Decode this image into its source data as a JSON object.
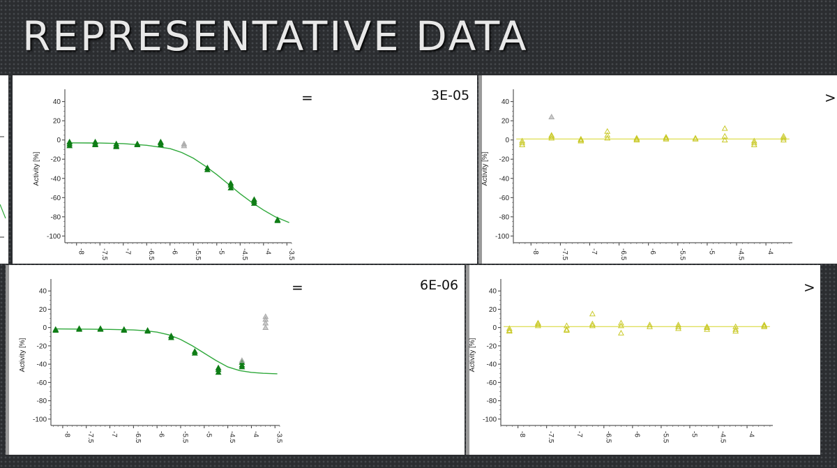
{
  "slide": {
    "title": "REPRESENTATIVE DATA"
  },
  "panels": {
    "top_left": {
      "annotation_symbol": "=",
      "value_text": "3E-05"
    },
    "top_right": {
      "annotation_symbol": ">"
    },
    "bottom_left": {
      "annotation_symbol": "=",
      "value_text": "6E-06"
    },
    "bottom_right": {
      "annotation_symbol": ">"
    }
  },
  "colors": {
    "active_green": "#0f7d16",
    "fit_green": "#2ea83a",
    "inactive_yellow": "#c9c928",
    "fit_yellow": "#e0e060",
    "outlier_gray": "#a8a8a8"
  },
  "chart_data": [
    {
      "id": "top_left",
      "type": "scatter",
      "ylabel": "Activity [%]",
      "xlim": [
        -8.25,
        -3.4
      ],
      "ylim": [
        -107,
        47
      ],
      "x_ticks": [
        "-8",
        "-7.5",
        "-7",
        "-6.5",
        "-6",
        "-5.5",
        "-5",
        "-4.5",
        "-4",
        "-3.5"
      ],
      "y_ticks": [
        "40",
        "20",
        "0",
        "-20",
        "-40",
        "-60",
        "-80",
        "-100"
      ],
      "series": [
        {
          "role": "active",
          "points": [
            [
              -8.15,
              -2
            ],
            [
              -8.15,
              -4
            ],
            [
              -8.15,
              -6
            ],
            [
              -7.6,
              -2
            ],
            [
              -7.6,
              -4
            ],
            [
              -7.6,
              -5
            ],
            [
              -7.15,
              -4
            ],
            [
              -7.15,
              -6
            ],
            [
              -7.15,
              -7
            ],
            [
              -6.7,
              -4
            ],
            [
              -6.7,
              -5
            ],
            [
              -6.2,
              -2
            ],
            [
              -6.2,
              -3
            ],
            [
              -6.2,
              -5
            ],
            [
              -5.2,
              -29
            ],
            [
              -5.2,
              -31
            ],
            [
              -4.7,
              -45
            ],
            [
              -4.7,
              -47
            ],
            [
              -4.7,
              -50
            ],
            [
              -4.2,
              -62
            ],
            [
              -4.2,
              -64
            ],
            [
              -4.2,
              -66
            ],
            [
              -3.7,
              -83
            ],
            [
              -3.7,
              -84
            ]
          ]
        },
        {
          "role": "excluded",
          "points": [
            [
              -5.7,
              -4
            ],
            [
              -5.7,
              -6
            ]
          ]
        }
      ],
      "fit": {
        "points": [
          [
            -8.15,
            -3
          ],
          [
            -7.5,
            -3.2
          ],
          [
            -7,
            -3.8
          ],
          [
            -6.5,
            -5.5
          ],
          [
            -6,
            -9
          ],
          [
            -5.75,
            -13
          ],
          [
            -5.5,
            -19
          ],
          [
            -5.25,
            -27
          ],
          [
            -5,
            -36
          ],
          [
            -4.75,
            -46
          ],
          [
            -4.5,
            -56
          ],
          [
            -4.25,
            -65
          ],
          [
            -4,
            -73
          ],
          [
            -3.75,
            -80
          ],
          [
            -3.45,
            -86
          ]
        ]
      }
    },
    {
      "id": "top_right",
      "type": "scatter",
      "ylabel": "Activity [%]",
      "xlim": [
        -8.3,
        -3.55
      ],
      "ylim": [
        -107,
        47
      ],
      "x_ticks": [
        "-8",
        "-7.5",
        "-7",
        "-6.5",
        "-6",
        "-5.5",
        "-5",
        "-4.5",
        "-4"
      ],
      "y_ticks": [
        "40",
        "20",
        "0",
        "-20",
        "-40",
        "-60",
        "-80",
        "-100"
      ],
      "series": [
        {
          "role": "inactive",
          "points": [
            [
              -8.15,
              -1
            ],
            [
              -8.15,
              -3
            ],
            [
              -8.15,
              -5
            ],
            [
              -7.65,
              2
            ],
            [
              -7.65,
              4
            ],
            [
              -7.65,
              5
            ],
            [
              -7.15,
              -1
            ],
            [
              -7.15,
              0
            ],
            [
              -7.15,
              1
            ],
            [
              -6.7,
              2
            ],
            [
              -6.7,
              5
            ],
            [
              -6.7,
              9
            ],
            [
              -6.2,
              0
            ],
            [
              -6.2,
              1
            ],
            [
              -6.2,
              2
            ],
            [
              -5.7,
              1
            ],
            [
              -5.7,
              2
            ],
            [
              -5.7,
              3
            ],
            [
              -5.2,
              1
            ],
            [
              -5.2,
              2
            ],
            [
              -4.7,
              0
            ],
            [
              -4.7,
              4
            ],
            [
              -4.7,
              12
            ],
            [
              -4.2,
              -1
            ],
            [
              -4.2,
              -3
            ],
            [
              -4.2,
              -5
            ],
            [
              -3.7,
              0
            ],
            [
              -3.7,
              2
            ],
            [
              -3.7,
              4
            ]
          ]
        },
        {
          "role": "excluded",
          "points": [
            [
              -7.65,
              24
            ]
          ]
        }
      ],
      "fit": {
        "points": [
          [
            -8.25,
            1
          ],
          [
            -3.6,
            1
          ]
        ]
      }
    },
    {
      "id": "bottom_left",
      "type": "scatter",
      "ylabel": "Activity [%]",
      "xlim": [
        -8.25,
        -3.4
      ],
      "ylim": [
        -107,
        47
      ],
      "x_ticks": [
        "-8",
        "-7.5",
        "-7",
        "-6.5",
        "-6",
        "-5.5",
        "-5",
        "-4.5",
        "-4",
        "-3.5"
      ],
      "y_ticks": [
        "40",
        "20",
        "0",
        "-20",
        "-40",
        "-60",
        "-80",
        "-100"
      ],
      "series": [
        {
          "role": "active",
          "points": [
            [
              -8.15,
              -2
            ],
            [
              -8.15,
              -3
            ],
            [
              -7.65,
              -1
            ],
            [
              -7.65,
              -2
            ],
            [
              -7.2,
              -1
            ],
            [
              -7.2,
              -2
            ],
            [
              -6.7,
              -2
            ],
            [
              -6.7,
              -3
            ],
            [
              -6.2,
              -3
            ],
            [
              -6.2,
              -4
            ],
            [
              -5.7,
              -9
            ],
            [
              -5.7,
              -11
            ],
            [
              -5.2,
              -26
            ],
            [
              -5.2,
              -28
            ],
            [
              -4.7,
              -44
            ],
            [
              -4.7,
              -46
            ],
            [
              -4.7,
              -49
            ],
            [
              -4.2,
              -38
            ],
            [
              -4.2,
              -41
            ],
            [
              -4.2,
              -43
            ]
          ]
        },
        {
          "role": "excluded",
          "points": [
            [
              -3.7,
              0
            ],
            [
              -3.7,
              5
            ],
            [
              -3.7,
              9
            ],
            [
              -3.7,
              12
            ],
            [
              -4.2,
              -36
            ]
          ]
        }
      ],
      "fit": {
        "points": [
          [
            -8.15,
            -1.5
          ],
          [
            -7.5,
            -1.7
          ],
          [
            -7,
            -2
          ],
          [
            -6.5,
            -2.6
          ],
          [
            -6.25,
            -3.5
          ],
          [
            -6,
            -5
          ],
          [
            -5.75,
            -8
          ],
          [
            -5.5,
            -13
          ],
          [
            -5.25,
            -20
          ],
          [
            -5,
            -28
          ],
          [
            -4.75,
            -36
          ],
          [
            -4.5,
            -43
          ],
          [
            -4.25,
            -47
          ],
          [
            -4,
            -49
          ],
          [
            -3.75,
            -50
          ],
          [
            -3.45,
            -50.5
          ]
        ]
      }
    },
    {
      "id": "bottom_right",
      "type": "scatter",
      "ylabel": "Activity [%]",
      "xlim": [
        -8.3,
        -3.55
      ],
      "ylim": [
        -107,
        47
      ],
      "x_ticks": [
        "-8",
        "-7.5",
        "-7",
        "-6.5",
        "-6",
        "-5.5",
        "-5",
        "-4.5",
        "-4"
      ],
      "y_ticks": [
        "40",
        "20",
        "0",
        "-20",
        "-40",
        "-60",
        "-80",
        "-100"
      ],
      "series": [
        {
          "role": "inactive",
          "points": [
            [
              -8.15,
              -1
            ],
            [
              -8.15,
              -3
            ],
            [
              -8.15,
              -4
            ],
            [
              -7.65,
              2
            ],
            [
              -7.65,
              4
            ],
            [
              -7.65,
              5
            ],
            [
              -7.15,
              -2
            ],
            [
              -7.15,
              -3
            ],
            [
              -7.15,
              2
            ],
            [
              -6.7,
              2
            ],
            [
              -6.7,
              4
            ],
            [
              -6.7,
              15
            ],
            [
              -6.2,
              -6
            ],
            [
              -6.2,
              2
            ],
            [
              -6.2,
              5
            ],
            [
              -5.7,
              1
            ],
            [
              -5.7,
              3
            ],
            [
              -5.2,
              -1
            ],
            [
              -5.2,
              1
            ],
            [
              -5.2,
              3
            ],
            [
              -4.7,
              -2
            ],
            [
              -4.7,
              0
            ],
            [
              -4.7,
              1
            ],
            [
              -4.2,
              -2
            ],
            [
              -4.2,
              -4
            ],
            [
              -4.2,
              1
            ],
            [
              -3.7,
              1
            ],
            [
              -3.7,
              2
            ],
            [
              -3.7,
              3
            ]
          ]
        }
      ],
      "fit": {
        "points": [
          [
            -8.25,
            1
          ],
          [
            -3.6,
            1
          ]
        ]
      }
    }
  ]
}
